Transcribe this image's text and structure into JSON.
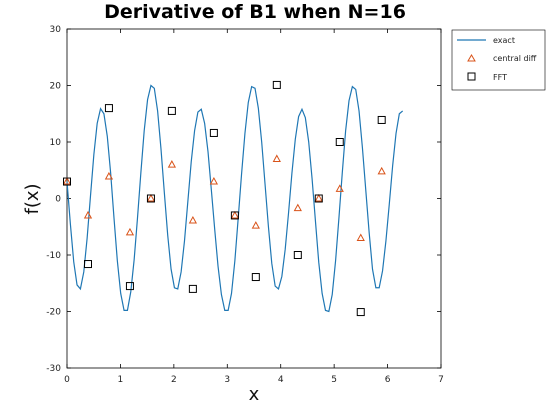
{
  "chart_data": {
    "type": "line",
    "title": "Derivative of B1 when N=16",
    "xlabel": "x",
    "ylabel": "f(x)",
    "xlim": [
      0,
      7
    ],
    "ylim": [
      -30,
      30
    ],
    "xticks": [
      0,
      1,
      2,
      3,
      4,
      5,
      6,
      7
    ],
    "yticks": [
      -30,
      -20,
      -10,
      0,
      10,
      20,
      30
    ],
    "grid": false,
    "legend_position": "outside-top-right",
    "colors": {
      "exact": "#1f77b4",
      "central": "#d95319",
      "fft": "#000000"
    },
    "series": [
      {
        "name": "exact",
        "style": "line",
        "x": [
          0.0,
          0.063,
          0.126,
          0.188,
          0.251,
          0.314,
          0.377,
          0.44,
          0.503,
          0.565,
          0.628,
          0.691,
          0.754,
          0.817,
          0.88,
          0.942,
          1.005,
          1.068,
          1.131,
          1.194,
          1.257,
          1.319,
          1.382,
          1.445,
          1.508,
          1.571,
          1.634,
          1.696,
          1.759,
          1.822,
          1.885,
          1.948,
          2.011,
          2.073,
          2.136,
          2.199,
          2.262,
          2.325,
          2.388,
          2.45,
          2.513,
          2.576,
          2.639,
          2.702,
          2.765,
          2.827,
          2.89,
          2.953,
          3.016,
          3.079,
          3.142,
          3.204,
          3.267,
          3.33,
          3.393,
          3.456,
          3.519,
          3.581,
          3.644,
          3.707,
          3.77,
          3.833,
          3.896,
          3.958,
          4.021,
          4.084,
          4.147,
          4.21,
          4.273,
          4.335,
          4.398,
          4.461,
          4.524,
          4.587,
          4.65,
          4.712,
          4.775,
          4.838,
          4.901,
          4.964,
          5.027,
          5.089,
          5.152,
          5.215,
          5.278,
          5.341,
          5.404,
          5.466,
          5.529,
          5.592,
          5.655,
          5.718,
          5.781,
          5.843,
          5.906,
          5.969,
          6.032,
          6.095,
          6.158,
          6.22,
          6.283
        ],
        "y": [
          3.0,
          -4.5,
          -11.2,
          -15.3,
          -16.0,
          -13.0,
          -7.0,
          0.5,
          7.8,
          13.3,
          15.9,
          15.0,
          11.0,
          4.5,
          -3.5,
          -11.0,
          -16.8,
          -19.8,
          -19.8,
          -16.5,
          -10.8,
          -3.5,
          4.5,
          12.0,
          17.5,
          20.0,
          19.5,
          15.5,
          8.8,
          1.0,
          -6.5,
          -12.5,
          -15.8,
          -16.0,
          -13.0,
          -7.5,
          -0.5,
          6.5,
          12.0,
          15.3,
          15.8,
          13.3,
          8.3,
          1.5,
          -5.5,
          -12.0,
          -17.0,
          -19.8,
          -19.8,
          -16.8,
          -11.0,
          -3.5,
          4.3,
          11.5,
          17.0,
          19.8,
          19.5,
          16.0,
          10.0,
          2.5,
          -5.0,
          -11.5,
          -15.5,
          -16.0,
          -13.8,
          -9.0,
          -2.5,
          4.5,
          10.5,
          14.5,
          15.8,
          14.3,
          10.0,
          3.5,
          -4.0,
          -11.3,
          -16.8,
          -19.8,
          -20.0,
          -17.0,
          -11.0,
          -3.5,
          4.5,
          12.0,
          17.3,
          19.8,
          19.3,
          15.5,
          9.0,
          1.5,
          -6.0,
          -12.5,
          -15.8,
          -15.8,
          -12.8,
          -7.5,
          -1.0,
          5.8,
          11.5,
          15.0,
          15.5
        ]
      },
      {
        "name": "central diff",
        "style": "triangle",
        "x": [
          0.0,
          0.393,
          0.785,
          1.178,
          1.571,
          1.963,
          2.356,
          2.749,
          3.142,
          3.534,
          3.927,
          4.32,
          4.712,
          5.105,
          5.498,
          5.89
        ],
        "y": [
          3.0,
          -3.0,
          3.9,
          -6.0,
          0.0,
          6.0,
          -3.9,
          3.0,
          -3.0,
          -4.8,
          7.0,
          -1.7,
          0.0,
          1.7,
          -7.0,
          4.8
        ]
      },
      {
        "name": "FFT",
        "style": "square",
        "x": [
          0.0,
          0.393,
          0.785,
          1.178,
          1.571,
          1.963,
          2.356,
          2.749,
          3.142,
          3.534,
          3.927,
          4.32,
          4.712,
          5.105,
          5.498,
          5.89
        ],
        "y": [
          3.0,
          -11.6,
          16.0,
          -15.5,
          0.0,
          15.5,
          -16.0,
          11.6,
          -3.0,
          -13.9,
          20.1,
          -10.0,
          0.0,
          10.0,
          -20.1,
          13.9
        ]
      }
    ]
  }
}
